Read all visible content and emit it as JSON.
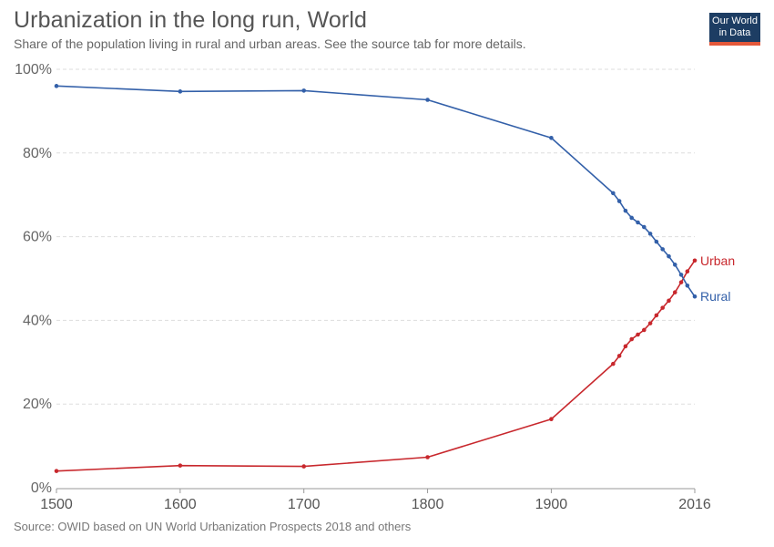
{
  "header": {
    "title": "Urbanization in the long run, World",
    "subtitle": "Share of the population living in rural and urban areas. See the source tab for more details."
  },
  "logo": {
    "line1": "Our World",
    "line2": "in Data"
  },
  "footer": {
    "source": "Source: OWID based on UN World Urbanization Prospects 2018 and others"
  },
  "colors": {
    "urban": "#c8282d",
    "rural": "#3360a9",
    "grid": "#dddddd"
  },
  "chart_data": {
    "type": "line",
    "title": "Urbanization in the long run, World",
    "xlabel": "",
    "ylabel": "",
    "xlim": [
      1500,
      2016
    ],
    "ylim": [
      0,
      100
    ],
    "x_ticks": [
      1500,
      1600,
      1700,
      1800,
      1900,
      2016
    ],
    "y_ticks": [
      0,
      20,
      40,
      60,
      80,
      100
    ],
    "y_tick_labels": [
      "0%",
      "20%",
      "40%",
      "60%",
      "80%",
      "100%"
    ],
    "grid": true,
    "series": [
      {
        "name": "Urban",
        "color": "#c8282d",
        "points": [
          [
            1500,
            4.0
          ],
          [
            1600,
            5.3
          ],
          [
            1700,
            5.1
          ],
          [
            1800,
            7.3
          ],
          [
            1900,
            16.4
          ],
          [
            1950,
            29.6
          ],
          [
            1955,
            31.5
          ],
          [
            1960,
            33.8
          ],
          [
            1965,
            35.5
          ],
          [
            1970,
            36.6
          ],
          [
            1975,
            37.7
          ],
          [
            1980,
            39.3
          ],
          [
            1985,
            41.2
          ],
          [
            1990,
            43.0
          ],
          [
            1995,
            44.7
          ],
          [
            2000,
            46.7
          ],
          [
            2005,
            49.1
          ],
          [
            2010,
            51.7
          ],
          [
            2016,
            54.3
          ]
        ]
      },
      {
        "name": "Rural",
        "color": "#3360a9",
        "points": [
          [
            1500,
            96.0
          ],
          [
            1600,
            94.7
          ],
          [
            1700,
            94.9
          ],
          [
            1800,
            92.7
          ],
          [
            1900,
            83.6
          ],
          [
            1950,
            70.4
          ],
          [
            1955,
            68.5
          ],
          [
            1960,
            66.2
          ],
          [
            1965,
            64.5
          ],
          [
            1970,
            63.4
          ],
          [
            1975,
            62.3
          ],
          [
            1980,
            60.7
          ],
          [
            1985,
            58.8
          ],
          [
            1990,
            57.0
          ],
          [
            1995,
            55.3
          ],
          [
            2000,
            53.3
          ],
          [
            2005,
            50.9
          ],
          [
            2010,
            48.3
          ],
          [
            2016,
            45.7
          ]
        ]
      }
    ]
  }
}
